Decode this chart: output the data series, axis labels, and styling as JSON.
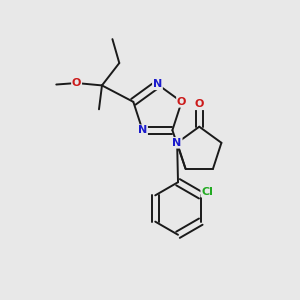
{
  "bg_color": "#e8e8e8",
  "bond_color": "#1a1a1a",
  "bond_lw": 1.4,
  "dbl_off": 0.012,
  "colors": {
    "N": "#1a1acc",
    "O": "#cc1a1a",
    "Cl": "#22aa22",
    "C": "#000000"
  },
  "afs": 8.0,
  "xlim": [
    0.0,
    1.0
  ],
  "ylim": [
    0.0,
    1.0
  ]
}
